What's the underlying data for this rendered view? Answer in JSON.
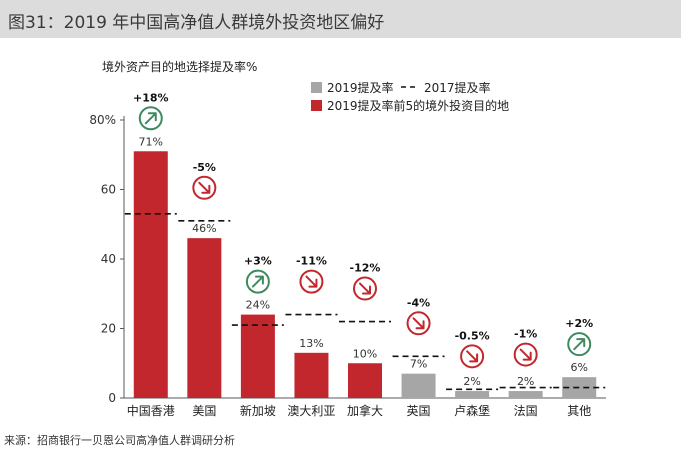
{
  "title": "图31：2019 年中国高净值人群境外投资地区偏好",
  "source": "来源：招商银行一贝恩公司高净值人群调研分析",
  "chart_data": {
    "type": "bar",
    "ylabel": "境外资产目的地选择提及率%",
    "ylim": [
      0,
      80
    ],
    "yticks": [
      "0",
      "20",
      "40",
      "60",
      "80%"
    ],
    "categories": [
      "中国香港",
      "美国",
      "新加坡",
      "澳大利亚",
      "加拿大",
      "英国",
      "卢森堡",
      "法国",
      "其他"
    ],
    "series": [
      {
        "name": "2019提及率",
        "values": [
          71,
          46,
          24,
          13,
          10,
          7,
          2,
          2,
          6
        ]
      },
      {
        "name": "2017提及率",
        "values": [
          53,
          51,
          21,
          24,
          22,
          12,
          2.5,
          3,
          3
        ]
      }
    ],
    "value_labels": [
      "71%",
      "46%",
      "24%",
      "13%",
      "10%",
      "7%",
      "2%",
      "2%",
      "6%"
    ],
    "change_labels": [
      "+18%",
      "-5%",
      "+3%",
      "-11%",
      "-12%",
      "-4%",
      "-0.5%",
      "-1%",
      "+2%"
    ],
    "change_dirs": [
      "up",
      "down",
      "up",
      "down",
      "down",
      "down",
      "down",
      "down",
      "up"
    ],
    "top5": [
      true,
      true,
      true,
      true,
      true,
      false,
      false,
      false,
      false
    ],
    "legend": {
      "gray": "2019提及率",
      "dash": "2017提及率",
      "red": "2019提及率前5的境外投资目的地"
    },
    "colors": {
      "red": "#c1272d",
      "gray": "#a6a6a6",
      "up": "#3e8a5e",
      "down": "#c1272d",
      "axis": "#595959"
    }
  }
}
